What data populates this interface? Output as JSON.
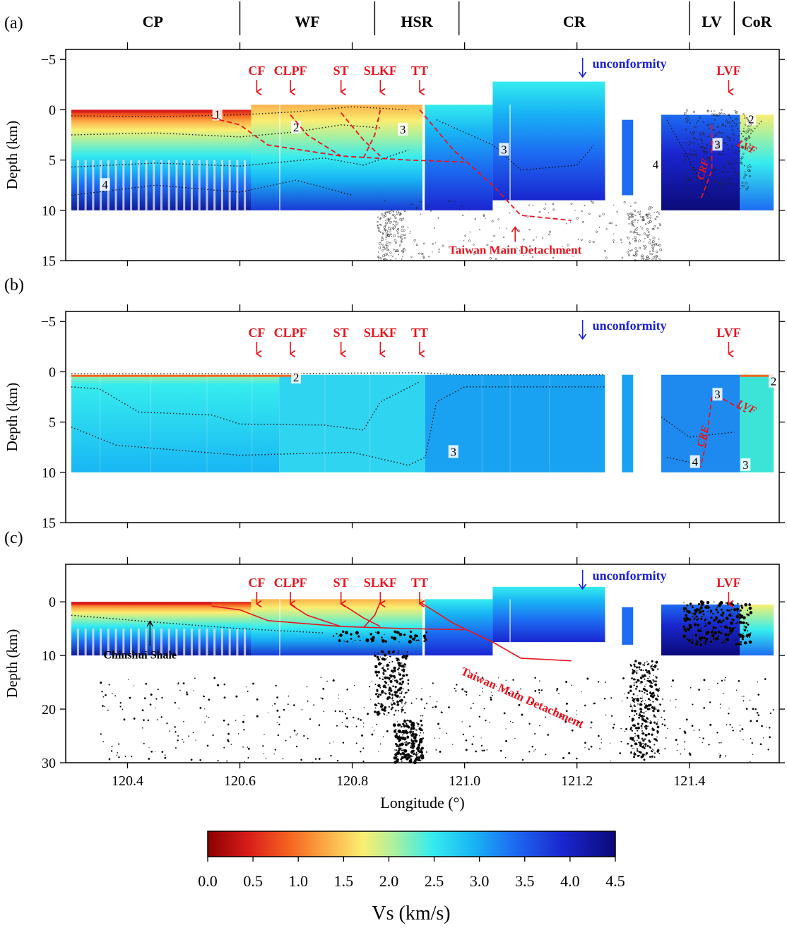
{
  "regions": [
    {
      "label": "CP",
      "lon_start": 120.29,
      "lon_end": 120.6
    },
    {
      "label": "WF",
      "lon_start": 120.6,
      "lon_end": 120.84
    },
    {
      "label": "HSR",
      "lon_start": 120.84,
      "lon_end": 120.99
    },
    {
      "label": "CR",
      "lon_start": 120.99,
      "lon_end": 121.4
    },
    {
      "label": "LV",
      "lon_start": 121.4,
      "lon_end": 121.48
    },
    {
      "label": "CoR",
      "lon_start": 121.48,
      "lon_end": 121.56
    }
  ],
  "colors": {
    "fault": "#e8141e",
    "unconformity": "#1c22d6",
    "colorbar_stops": [
      "#8b0000",
      "#d91c1c",
      "#f5641e",
      "#fbb24a",
      "#fbee71",
      "#a8f0a0",
      "#36ecee",
      "#18b6f4",
      "#1d6cf2",
      "#1a26d0",
      "#0b0a78"
    ]
  },
  "chart_data": [
    {
      "panel_label": "(a)",
      "type": "heatmap",
      "xlim": [
        120.29,
        121.56
      ],
      "ylim": [
        15,
        -6
      ],
      "x_ticks": [
        120.4,
        120.6,
        120.8,
        121.0,
        121.2,
        121.4
      ],
      "y_ticks": [
        -5,
        0,
        5,
        10,
        15
      ],
      "y_tick_labels": [
        "−5",
        "0",
        "5",
        "10",
        "15"
      ],
      "ylabel": "Depth (km)",
      "faults": [
        {
          "label": "CF",
          "lon": 120.63
        },
        {
          "label": "CLPF",
          "lon": 120.69
        },
        {
          "label": "ST",
          "lon": 120.78
        },
        {
          "label": "SLKF",
          "lon": 120.85
        },
        {
          "label": "TT",
          "lon": 120.92
        },
        {
          "label": "LVF",
          "lon": 121.47
        }
      ],
      "annotations": {
        "unconformity": "unconformity",
        "detachment": "Taiwan Main Detachment",
        "contour_labels": [
          "1",
          "2",
          "3",
          "3",
          "4",
          "4",
          "2",
          "3"
        ],
        "side_labels": [
          "CRF",
          "LVF"
        ]
      }
    },
    {
      "panel_label": "(b)",
      "type": "heatmap",
      "xlim": [
        120.29,
        121.56
      ],
      "ylim": [
        15,
        -6
      ],
      "x_ticks": [
        120.4,
        120.6,
        120.8,
        121.0,
        121.2,
        121.4
      ],
      "y_ticks": [
        -5,
        0,
        5,
        10,
        15
      ],
      "y_tick_labels": [
        "−5",
        "0",
        "5",
        "10",
        "15"
      ],
      "ylabel": "Depth (km)",
      "faults": [
        {
          "label": "CF",
          "lon": 120.63
        },
        {
          "label": "CLPF",
          "lon": 120.69
        },
        {
          "label": "ST",
          "lon": 120.78
        },
        {
          "label": "SLKF",
          "lon": 120.85
        },
        {
          "label": "TT",
          "lon": 120.92
        },
        {
          "label": "LVF",
          "lon": 121.47
        }
      ],
      "annotations": {
        "unconformity": "unconformity",
        "contour_labels": [
          "2",
          "3",
          "3",
          "4",
          "3",
          "2"
        ],
        "side_labels": [
          "CRF",
          "LVF"
        ]
      }
    },
    {
      "panel_label": "(c)",
      "type": "heatmap",
      "xlim": [
        120.29,
        121.56
      ],
      "ylim": [
        30,
        -7
      ],
      "x_ticks": [
        120.4,
        120.6,
        120.8,
        121.0,
        121.2,
        121.4
      ],
      "x_tick_labels": [
        "120.4",
        "120.6",
        "120.8",
        "121.0",
        "121.2",
        "121.4"
      ],
      "y_ticks": [
        0,
        10,
        20,
        30
      ],
      "y_tick_labels": [
        "0",
        "10",
        "20",
        "30"
      ],
      "ylabel": "Depth (km)",
      "xlabel": "Longitude (°)",
      "faults": [
        {
          "label": "CF",
          "lon": 120.63
        },
        {
          "label": "CLPF",
          "lon": 120.69
        },
        {
          "label": "ST",
          "lon": 120.78
        },
        {
          "label": "SLKF",
          "lon": 120.85
        },
        {
          "label": "TT",
          "lon": 120.92
        },
        {
          "label": "LVF",
          "lon": 121.47
        }
      ],
      "annotations": {
        "unconformity": "unconformity",
        "detachment": "Taiwan Main Detachment",
        "shale": "Chinshui Shale"
      }
    }
  ],
  "colorbar": {
    "min": 0.0,
    "max": 4.5,
    "ticks": [
      0.0,
      0.5,
      1.0,
      1.5,
      2.0,
      2.5,
      3.0,
      3.5,
      4.0,
      4.5
    ],
    "tick_labels": [
      "0.0",
      "0.5",
      "1.0",
      "1.5",
      "2.0",
      "2.5",
      "3.0",
      "3.5",
      "4.0",
      "4.5"
    ],
    "label": "Vs (km/s)"
  }
}
